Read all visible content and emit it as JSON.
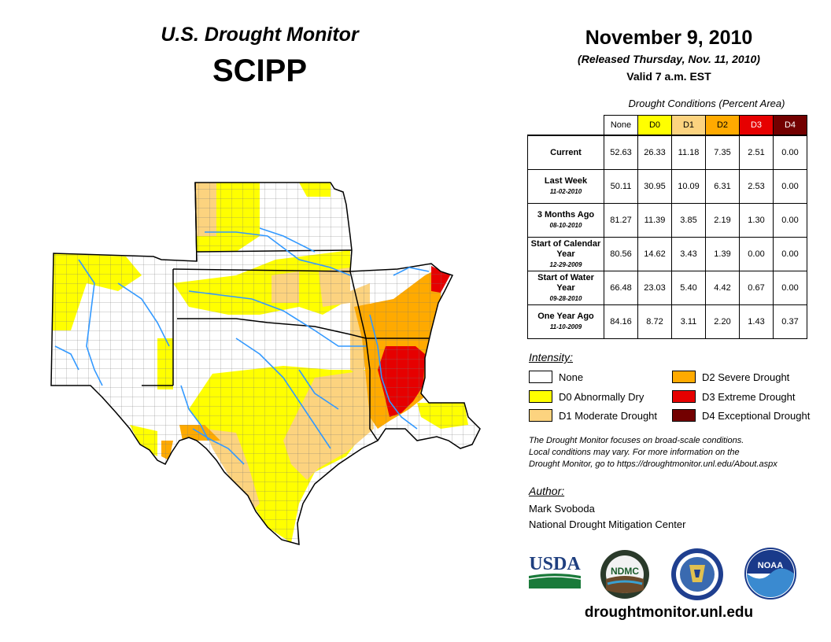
{
  "header": {
    "title": "U.S. Drought Monitor",
    "region": "SCIPP",
    "date": "November 9, 2010",
    "released": "(Released Thursday, Nov. 11, 2010)",
    "valid": "Valid 7 a.m. EST"
  },
  "table": {
    "caption": "Drought Conditions (Percent Area)",
    "columns": [
      {
        "label": "None",
        "color": "#ffffff",
        "text_color": "#000000"
      },
      {
        "label": "D0",
        "color": "#ffff00",
        "text_color": "#000000"
      },
      {
        "label": "D1",
        "color": "#fcd37f",
        "text_color": "#000000"
      },
      {
        "label": "D2",
        "color": "#ffaa00",
        "text_color": "#000000"
      },
      {
        "label": "D3",
        "color": "#e60000",
        "text_color": "#ffffff"
      },
      {
        "label": "D4",
        "color": "#730000",
        "text_color": "#ffffff"
      }
    ],
    "rows": [
      {
        "label": "Current",
        "sub": "",
        "values": [
          "52.63",
          "26.33",
          "11.18",
          "7.35",
          "2.51",
          "0.00"
        ]
      },
      {
        "label": "Last Week",
        "sub": "11-02-2010",
        "values": [
          "50.11",
          "30.95",
          "10.09",
          "6.31",
          "2.53",
          "0.00"
        ]
      },
      {
        "label": "3 Months Ago",
        "sub": "08-10-2010",
        "values": [
          "81.27",
          "11.39",
          "3.85",
          "2.19",
          "1.30",
          "0.00"
        ]
      },
      {
        "label": "Start of Calendar Year",
        "sub": "12-29-2009",
        "values": [
          "80.56",
          "14.62",
          "3.43",
          "1.39",
          "0.00",
          "0.00"
        ]
      },
      {
        "label": "Start of Water Year",
        "sub": "09-28-2010",
        "values": [
          "66.48",
          "23.03",
          "5.40",
          "4.42",
          "0.67",
          "0.00"
        ]
      },
      {
        "label": "One Year Ago",
        "sub": "11-10-2009",
        "values": [
          "84.16",
          "8.72",
          "3.11",
          "2.20",
          "1.43",
          "0.37"
        ]
      }
    ]
  },
  "legend": {
    "heading": "Intensity:",
    "items": [
      {
        "label": "None",
        "color": "#ffffff"
      },
      {
        "label": "D0 Abnormally Dry",
        "color": "#ffff00"
      },
      {
        "label": "D1 Moderate Drought",
        "color": "#fcd37f"
      },
      {
        "label": "D2 Severe Drought",
        "color": "#ffaa00"
      },
      {
        "label": "D3 Extreme Drought",
        "color": "#e60000"
      },
      {
        "label": "D4 Exceptional Drought",
        "color": "#730000"
      }
    ]
  },
  "note": {
    "line1": "The Drought Monitor focuses on broad-scale conditions.",
    "line2": "Local conditions may vary. For more information on the",
    "line3": "Drought Monitor, go to https://droughtmonitor.unl.edu/About.aspx"
  },
  "author": {
    "heading": "Author:",
    "name": "Mark Svoboda",
    "org": "National Drought Mitigation Center"
  },
  "logos": {
    "usda": "USDA",
    "ndmc": "NDMC",
    "noaa": "NOAA"
  },
  "footer": {
    "url": "droughtmonitor.unl.edu"
  },
  "map": {
    "none_color": "#ffffff",
    "d0_color": "#ffff00",
    "d1_color": "#fcd37f",
    "d2_color": "#ffaa00",
    "d3_color": "#e60000",
    "river_color": "#3399ff"
  }
}
